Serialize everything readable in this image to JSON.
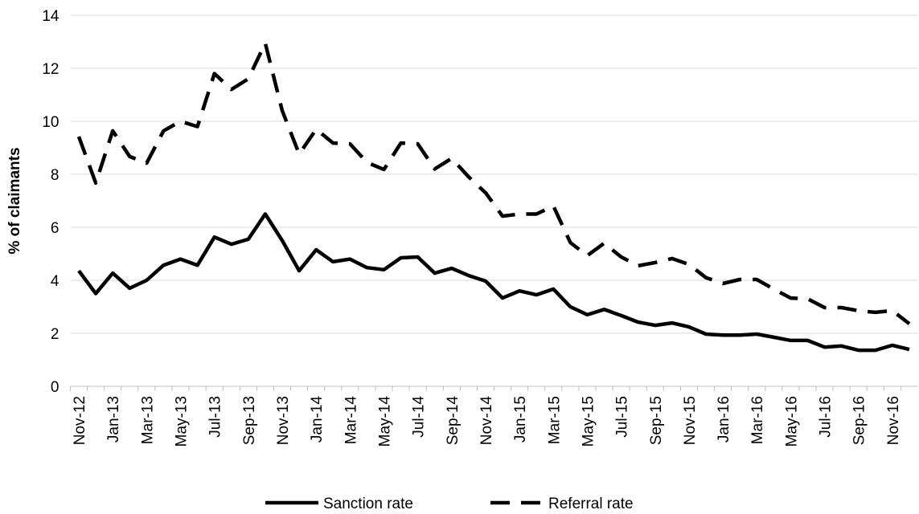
{
  "chart_data": {
    "type": "line",
    "y_label": "% of claimants",
    "categories": [
      "Nov-12",
      null,
      "Jan-13",
      null,
      "Mar-13",
      null,
      "May-13",
      null,
      "Jul-13",
      null,
      "Sep-13",
      null,
      "Nov-13",
      null,
      "Jan-14",
      null,
      "Mar-14",
      null,
      "May-14",
      null,
      "Jul-14",
      null,
      "Sep-14",
      null,
      "Nov-14",
      null,
      "Jan-15",
      null,
      "Mar-15",
      null,
      "May-15",
      null,
      "Jul-15",
      null,
      "Sep-15",
      null,
      "Nov-15",
      null,
      "Jan-16",
      null,
      "Mar-16",
      null,
      "May-16",
      null,
      "Jul-16",
      null,
      "Sep-16",
      null,
      "Nov-16",
      null
    ],
    "series": [
      {
        "name": "Sanction rate",
        "color": "#000000",
        "dash": false,
        "values": [
          4.36,
          3.5,
          4.27,
          3.7,
          4.0,
          4.57,
          4.8,
          4.57,
          5.63,
          5.36,
          5.55,
          6.5,
          5.5,
          4.36,
          5.15,
          4.7,
          4.8,
          4.48,
          4.4,
          4.85,
          4.88,
          4.27,
          4.45,
          4.18,
          3.97,
          3.33,
          3.6,
          3.45,
          3.67,
          3.0,
          2.7,
          2.9,
          2.67,
          2.42,
          2.3,
          2.39,
          2.24,
          1.97,
          1.93,
          1.93,
          1.97,
          1.85,
          1.73,
          1.73,
          1.48,
          1.52,
          1.36,
          1.36,
          1.55,
          1.39
        ]
      },
      {
        "name": "Referral rate",
        "color": "#000000",
        "dash": true,
        "values": [
          9.42,
          7.67,
          9.64,
          8.67,
          8.42,
          9.64,
          10.0,
          9.8,
          11.8,
          11.2,
          11.6,
          12.95,
          10.4,
          8.76,
          9.7,
          9.18,
          9.15,
          8.45,
          8.18,
          9.18,
          9.15,
          8.2,
          8.6,
          7.9,
          7.3,
          6.42,
          6.5,
          6.5,
          6.8,
          5.42,
          4.93,
          5.4,
          4.88,
          4.55,
          4.67,
          4.82,
          4.6,
          4.1,
          3.88,
          4.03,
          4.03,
          3.67,
          3.33,
          3.3,
          2.97,
          2.97,
          2.85,
          2.79,
          2.85,
          2.36
        ]
      }
    ],
    "ylim": [
      0,
      14
    ],
    "yticks": [
      0,
      2,
      4,
      6,
      8,
      10,
      12,
      14
    ],
    "grid": true,
    "legend": "bottom"
  }
}
